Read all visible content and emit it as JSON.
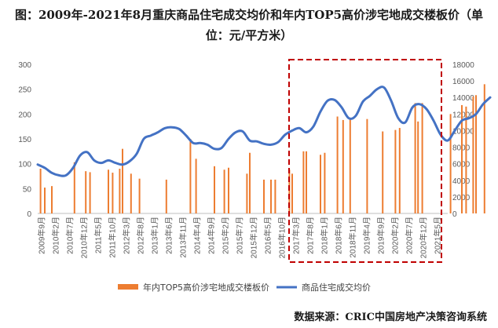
{
  "title": "图：2009年-2021年8月重庆商品住宅成交均价和年内TOP5高价涉宅地成交楼板价（单位：元/平方米）",
  "source": "数据来源：CRIC中国房地产决策咨询系统",
  "colors": {
    "bar": "#ED7D31",
    "line": "#4472C4",
    "highlight": "#C00000"
  },
  "chart_data": {
    "type": "bar+line",
    "title": "图：2009年-2021年8月重庆商品住宅成交均价和年内TOP5高价涉宅地成交楼板价（单位：元/平方米）",
    "x_tick_labels": [
      "2009年9月",
      "2010年2月",
      "2010年7月",
      "2010年12月",
      "2011年5月",
      "2011年10月",
      "2012年3月",
      "2012年8月",
      "2013年1月",
      "2013年6月",
      "2013年11月",
      "2014年4月",
      "2014年9月",
      "2015年2月",
      "2015年7月",
      "2015年12月",
      "2016年5月",
      "2016年10月",
      "2017年3月",
      "2017年8月",
      "2018年1月",
      "2018年6月",
      "2018年11月",
      "2019年4月",
      "2019年9月",
      "2020年2月",
      "2020年7月",
      "2020年12月",
      "2021年5月"
    ],
    "y_left": {
      "ticks": [
        0,
        50,
        100,
        150,
        200,
        250,
        300
      ],
      "ylim": [
        0,
        300
      ]
    },
    "y_right": {
      "ticks": [
        0,
        2000,
        4000,
        6000,
        8000,
        10000,
        12000,
        14000,
        16000,
        18000
      ],
      "ylim": [
        0,
        18000
      ]
    },
    "legend_position": "bottom",
    "grid": false,
    "highlight_box": {
      "from": "2017年3月",
      "to": "2021年5月"
    },
    "bars_series": {
      "name": "年内TOP5高价涉宅地成交楼板价",
      "axis": "left",
      "points": [
        {
          "x": 0.2,
          "y": 90
        },
        {
          "x": 0.5,
          "y": 52
        },
        {
          "x": 1.0,
          "y": 55
        },
        {
          "x": 2.6,
          "y": 103
        },
        {
          "x": 3.4,
          "y": 85
        },
        {
          "x": 3.7,
          "y": 83
        },
        {
          "x": 5.0,
          "y": 88
        },
        {
          "x": 5.3,
          "y": 82
        },
        {
          "x": 5.8,
          "y": 90
        },
        {
          "x": 6.0,
          "y": 130
        },
        {
          "x": 6.6,
          "y": 80
        },
        {
          "x": 7.2,
          "y": 70
        },
        {
          "x": 9.1,
          "y": 68
        },
        {
          "x": 10.8,
          "y": 150
        },
        {
          "x": 11.2,
          "y": 110
        },
        {
          "x": 12.5,
          "y": 95
        },
        {
          "x": 13.2,
          "y": 88
        },
        {
          "x": 13.5,
          "y": 92
        },
        {
          "x": 14.8,
          "y": 80
        },
        {
          "x": 15.0,
          "y": 122
        },
        {
          "x": 16.0,
          "y": 68
        },
        {
          "x": 16.5,
          "y": 68
        },
        {
          "x": 16.8,
          "y": 68
        },
        {
          "x": 17.8,
          "y": 88
        },
        {
          "x": 18.0,
          "y": 80
        },
        {
          "x": 18.8,
          "y": 125
        },
        {
          "x": 19.0,
          "y": 125
        },
        {
          "x": 20.0,
          "y": 118
        },
        {
          "x": 20.3,
          "y": 122
        },
        {
          "x": 21.2,
          "y": 195
        },
        {
          "x": 21.6,
          "y": 188
        },
        {
          "x": 22.1,
          "y": 190
        },
        {
          "x": 23.3,
          "y": 190
        },
        {
          "x": 24.4,
          "y": 165
        },
        {
          "x": 25.3,
          "y": 168
        },
        {
          "x": 25.6,
          "y": 172
        },
        {
          "x": 26.7,
          "y": 222
        },
        {
          "x": 26.9,
          "y": 185
        },
        {
          "x": 27.2,
          "y": 222
        },
        {
          "x": 29.2,
          "y": 200
        },
        {
          "x": 30.0,
          "y": 218
        },
        {
          "x": 30.3,
          "y": 215
        },
        {
          "x": 30.8,
          "y": 235
        },
        {
          "x": 31.0,
          "y": 238
        },
        {
          "x": 31.6,
          "y": 260
        }
      ]
    },
    "line_series": {
      "name": "商品住宅成交均价",
      "axis": "right",
      "points": [
        {
          "x": 0,
          "y": 5900
        },
        {
          "x": 0.5,
          "y": 5500
        },
        {
          "x": 1.0,
          "y": 4900
        },
        {
          "x": 1.5,
          "y": 4600
        },
        {
          "x": 2.0,
          "y": 4600
        },
        {
          "x": 2.5,
          "y": 5500
        },
        {
          "x": 3.0,
          "y": 7000
        },
        {
          "x": 3.5,
          "y": 7400
        },
        {
          "x": 4.0,
          "y": 6400
        },
        {
          "x": 4.5,
          "y": 6100
        },
        {
          "x": 5.0,
          "y": 6400
        },
        {
          "x": 5.5,
          "y": 6100
        },
        {
          "x": 6.0,
          "y": 5900
        },
        {
          "x": 6.5,
          "y": 6300
        },
        {
          "x": 7.0,
          "y": 7200
        },
        {
          "x": 7.5,
          "y": 9000
        },
        {
          "x": 8.0,
          "y": 9400
        },
        {
          "x": 8.5,
          "y": 9800
        },
        {
          "x": 9.0,
          "y": 10300
        },
        {
          "x": 9.5,
          "y": 10400
        },
        {
          "x": 10.0,
          "y": 10200
        },
        {
          "x": 10.5,
          "y": 9400
        },
        {
          "x": 11.0,
          "y": 8500
        },
        {
          "x": 11.5,
          "y": 8500
        },
        {
          "x": 12.0,
          "y": 8300
        },
        {
          "x": 12.5,
          "y": 7800
        },
        {
          "x": 13.0,
          "y": 7900
        },
        {
          "x": 13.5,
          "y": 9000
        },
        {
          "x": 14.0,
          "y": 9800
        },
        {
          "x": 14.5,
          "y": 9900
        },
        {
          "x": 15.0,
          "y": 8800
        },
        {
          "x": 15.5,
          "y": 8700
        },
        {
          "x": 16.0,
          "y": 8400
        },
        {
          "x": 16.5,
          "y": 8300
        },
        {
          "x": 17.0,
          "y": 8600
        },
        {
          "x": 17.5,
          "y": 9500
        },
        {
          "x": 18.0,
          "y": 10000
        },
        {
          "x": 18.5,
          "y": 10300
        },
        {
          "x": 19.0,
          "y": 9800
        },
        {
          "x": 19.5,
          "y": 10500
        },
        {
          "x": 20.0,
          "y": 12300
        },
        {
          "x": 20.5,
          "y": 13600
        },
        {
          "x": 21.0,
          "y": 13700
        },
        {
          "x": 21.5,
          "y": 12800
        },
        {
          "x": 22.0,
          "y": 11500
        },
        {
          "x": 22.5,
          "y": 11800
        },
        {
          "x": 23.0,
          "y": 13500
        },
        {
          "x": 23.5,
          "y": 14200
        },
        {
          "x": 24.0,
          "y": 15000
        },
        {
          "x": 24.5,
          "y": 15200
        },
        {
          "x": 25.0,
          "y": 13600
        },
        {
          "x": 25.5,
          "y": 11500
        },
        {
          "x": 26.0,
          "y": 11000
        },
        {
          "x": 26.5,
          "y": 12800
        },
        {
          "x": 27.0,
          "y": 13200
        },
        {
          "x": 27.5,
          "y": 12600
        },
        {
          "x": 28.0,
          "y": 11200
        },
        {
          "x": 28.5,
          "y": 9500
        },
        {
          "x": 29.0,
          "y": 8800
        },
        {
          "x": 29.5,
          "y": 10000
        },
        {
          "x": 30.0,
          "y": 11200
        },
        {
          "x": 30.5,
          "y": 11500
        },
        {
          "x": 31.0,
          "y": 12000
        },
        {
          "x": 31.5,
          "y": 13200
        },
        {
          "x": 32.0,
          "y": 14000
        }
      ]
    }
  }
}
